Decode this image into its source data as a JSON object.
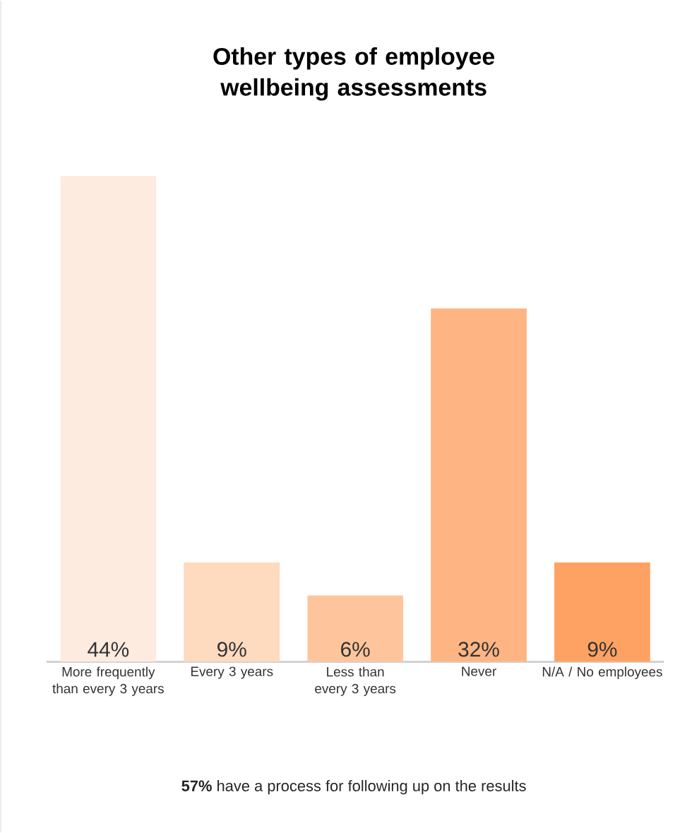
{
  "chart_data": {
    "type": "bar",
    "title": "Other types of employee wellbeing assessments",
    "categories": [
      "More frequently than every 3 years",
      "Every 3 years",
      "Less than every 3 years",
      "Never",
      "N/A / No employees"
    ],
    "values": [
      44,
      9,
      6,
      32,
      9
    ],
    "colors": [
      "#fdebdf",
      "#fedabf",
      "#fec59d",
      "#feb583",
      "#fea263"
    ],
    "value_labels": [
      "44%",
      "9%",
      "6%",
      "32%",
      "9%"
    ],
    "tick_labels": "x",
    "annotations": [
      "**57%** have a process for following up on the results"
    ]
  }
}
